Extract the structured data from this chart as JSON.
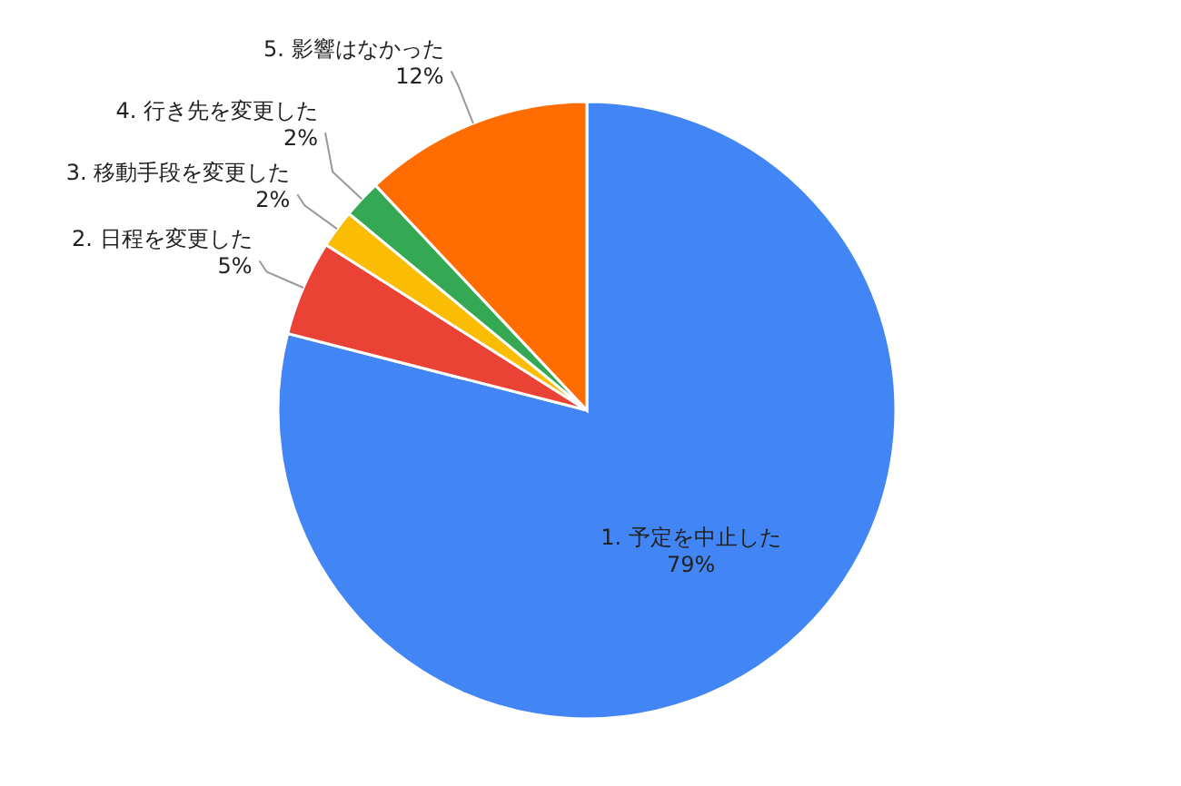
{
  "chart_data": {
    "type": "pie",
    "categories": [
      "1. 予定を中止した",
      "2. 日程を変更した",
      "3. 移動手段を変更した",
      "4. 行き先を変更した",
      "5. 影響はなかった"
    ],
    "values": [
      79,
      5,
      2,
      2,
      12
    ],
    "value_labels": [
      "79%",
      "5%",
      "2%",
      "2%",
      "12%"
    ],
    "colors": [
      "#4285f4",
      "#ea4335",
      "#fbbc04",
      "#34a853",
      "#ff6d01"
    ],
    "legend": false
  }
}
